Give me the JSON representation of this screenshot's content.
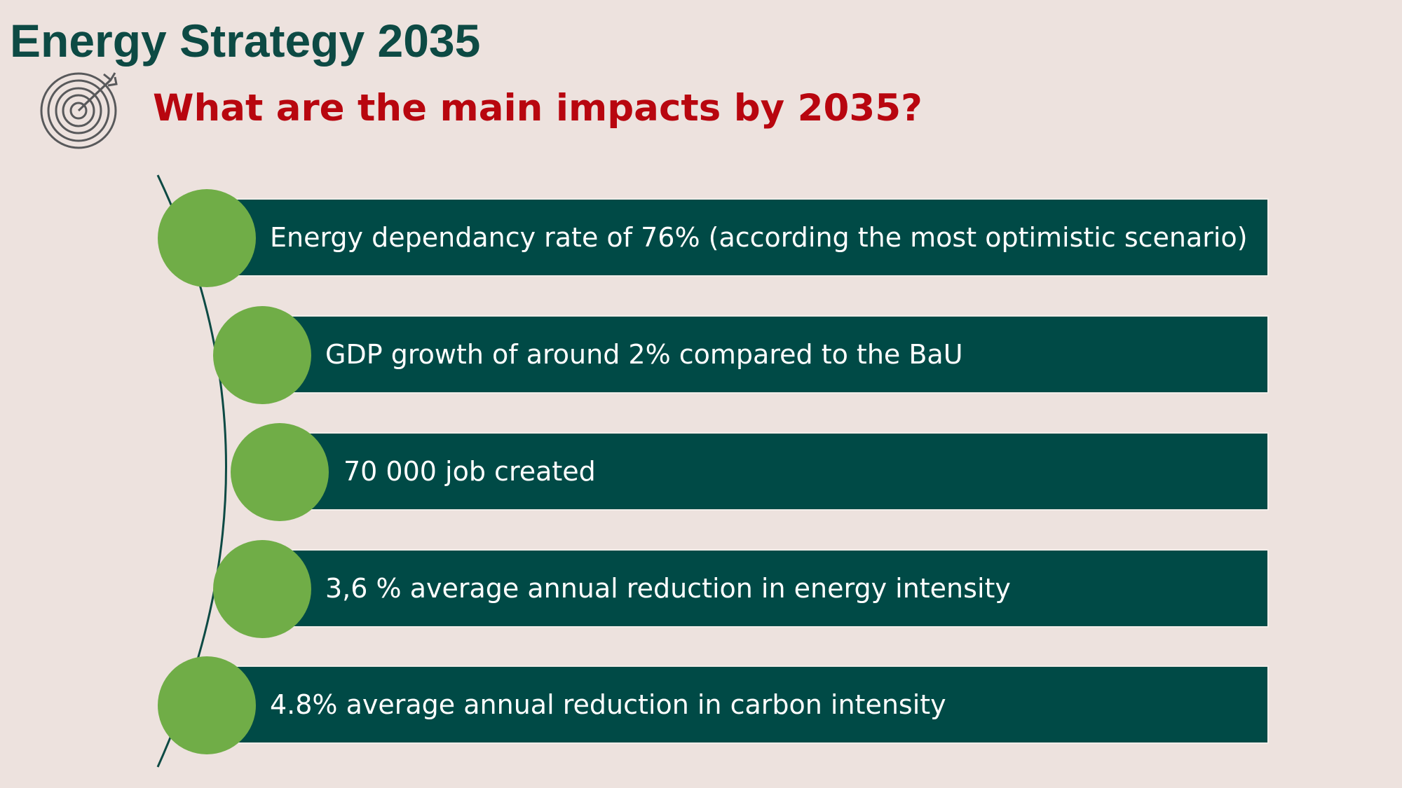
{
  "header": {
    "title": "Energy Strategy 2035",
    "subtitle": "What are the main impacts by 2035?",
    "icon": "target-icon"
  },
  "colors": {
    "background": "#ede2de",
    "title": "#0d4a44",
    "subtitle": "#b8060f",
    "bar": "#004a46",
    "circle": "#70ad47",
    "bar_text": "#ffffff"
  },
  "impacts": [
    {
      "label": "Energy dependancy rate of 76% (according the most optimistic scenario)"
    },
    {
      "label": "GDP growth of around 2% compared to the BaU"
    },
    {
      "label": "70 000 job created"
    },
    {
      "label": "3,6 % average annual reduction in energy intensity"
    },
    {
      "label": "4.8% average annual reduction in carbon intensity"
    }
  ]
}
